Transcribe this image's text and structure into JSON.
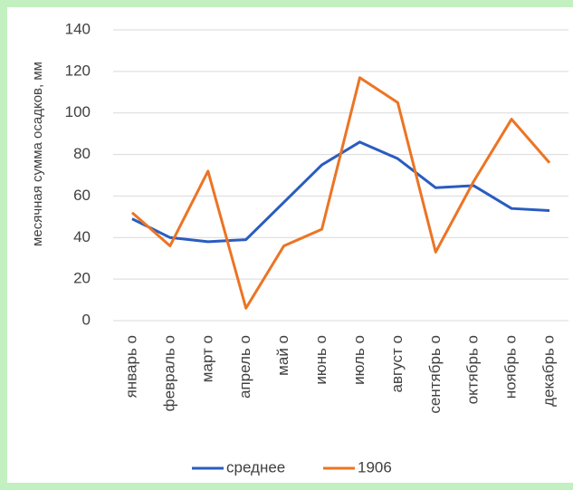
{
  "chart_data": {
    "type": "line",
    "y_label": "месячная сумма осадков, мм",
    "categories": [
      "январь о",
      "февраль о",
      "март о",
      "апрель о",
      "май о",
      "июнь о",
      "июль о",
      "август о",
      "сентябрь о",
      "октябрь о",
      "ноябрь о",
      "декабрь о"
    ],
    "series": [
      {
        "name": "среднее",
        "color": "#2a5cc0",
        "values": [
          49,
          40,
          38,
          39,
          57,
          75,
          86,
          78,
          64,
          65,
          54,
          53
        ]
      },
      {
        "name": "1906",
        "color": "#ec7424",
        "values": [
          52,
          36,
          72,
          6,
          36,
          44,
          117,
          105,
          33,
          67,
          97,
          76
        ]
      }
    ],
    "ylim": [
      0,
      140
    ],
    "yticks": [
      0,
      20,
      40,
      60,
      80,
      100,
      120,
      140
    ],
    "grid": true
  }
}
